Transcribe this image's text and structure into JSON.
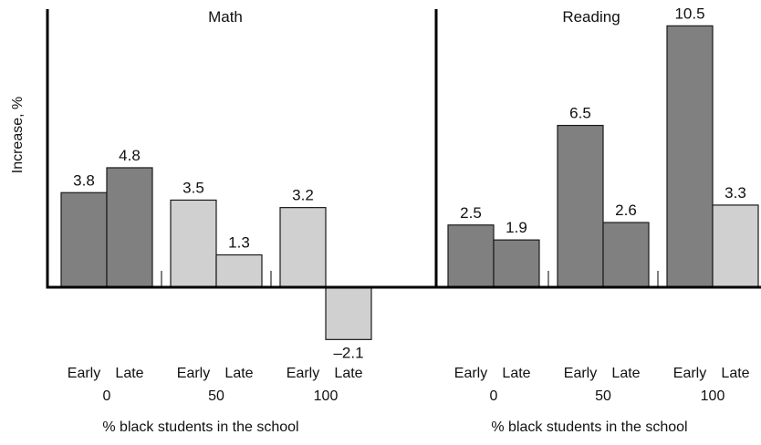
{
  "chart_data": [
    {
      "type": "bar",
      "title": "Math",
      "ylabel": "Increase, %",
      "xlabel": "% black students in the school",
      "groups": [
        {
          "label": "0",
          "bars": [
            {
              "label": "Early",
              "value": 3.8,
              "value_label": "3.8",
              "color": "#808080"
            },
            {
              "label": "Late",
              "value": 4.8,
              "value_label": "4.8",
              "color": "#808080"
            }
          ]
        },
        {
          "label": "50",
          "bars": [
            {
              "label": "Early",
              "value": 3.5,
              "value_label": "3.5",
              "color": "#d0d0d0"
            },
            {
              "label": "Late",
              "value": 1.3,
              "value_label": "1.3",
              "color": "#d0d0d0"
            }
          ]
        },
        {
          "label": "100",
          "bars": [
            {
              "label": "Early",
              "value": 3.2,
              "value_label": "3.2",
              "color": "#d0d0d0"
            },
            {
              "label": "Late",
              "value": -2.1,
              "value_label": "–2.1",
              "color": "#d0d0d0"
            }
          ]
        }
      ]
    },
    {
      "type": "bar",
      "title": "Reading",
      "ylabel": "",
      "xlabel": "% black students in the school",
      "groups": [
        {
          "label": "0",
          "bars": [
            {
              "label": "Early",
              "value": 2.5,
              "value_label": "2.5",
              "color": "#808080"
            },
            {
              "label": "Late",
              "value": 1.9,
              "value_label": "1.9",
              "color": "#808080"
            }
          ]
        },
        {
          "label": "50",
          "bars": [
            {
              "label": "Early",
              "value": 6.5,
              "value_label": "6.5",
              "color": "#808080"
            },
            {
              "label": "Late",
              "value": 2.6,
              "value_label": "2.6",
              "color": "#808080"
            }
          ]
        },
        {
          "label": "100",
          "bars": [
            {
              "label": "Early",
              "value": 10.5,
              "value_label": "10.5",
              "color": "#808080"
            },
            {
              "label": "Late",
              "value": 3.3,
              "value_label": "3.3",
              "color": "#d0d0d0"
            }
          ]
        }
      ]
    }
  ]
}
